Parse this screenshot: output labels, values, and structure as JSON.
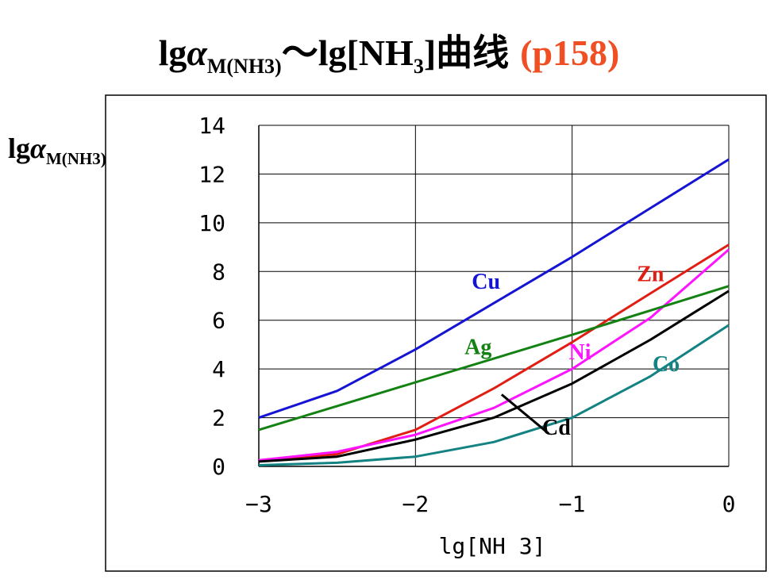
{
  "header": {
    "title_prefix": "lg",
    "title_alpha": "α",
    "title_sub": "M(NH3)",
    "title_tilde": "～",
    "title_main": "lg[NH",
    "title_sub3": "3",
    "title_suffix": "]曲线",
    "title_page": "(p158)",
    "page_color": "#f04e23"
  },
  "chart_data": {
    "type": "line",
    "title": "",
    "ylabel": "lgα M(NH3)",
    "xlabel": "lg[NH 3]",
    "xlim": [
      -3,
      0
    ],
    "ylim": [
      0,
      14
    ],
    "xticks": [
      -3,
      -2,
      -1,
      0
    ],
    "xtick_labels": [
      "−3",
      "−2",
      "−1",
      "0"
    ],
    "yticks": [
      0,
      2,
      4,
      6,
      8,
      10,
      12,
      14
    ],
    "grid": true,
    "series": [
      {
        "name": "Cu",
        "color": "#1414d2",
        "x": [
          -3,
          -2.5,
          -2.0,
          -1.5,
          -1.0,
          -0.5,
          0
        ],
        "y": [
          2.0,
          3.1,
          4.8,
          6.7,
          8.6,
          10.6,
          12.6
        ]
      },
      {
        "name": "Zn",
        "color": "#e01e14",
        "x": [
          -3,
          -2.5,
          -2.0,
          -1.5,
          -1.0,
          -0.5,
          0
        ],
        "y": [
          0.25,
          0.5,
          1.5,
          3.2,
          5.1,
          7.1,
          9.1
        ]
      },
      {
        "name": "Ni",
        "color": "#ff14ff",
        "x": [
          -3,
          -2.5,
          -2.0,
          -1.5,
          -1.0,
          -0.5,
          0
        ],
        "y": [
          0.25,
          0.6,
          1.3,
          2.4,
          4.0,
          6.1,
          8.9
        ]
      },
      {
        "name": "Ag",
        "color": "#138213",
        "x": [
          -3,
          -2.0,
          -1.0,
          0
        ],
        "y": [
          1.5,
          3.45,
          5.4,
          7.4
        ]
      },
      {
        "name": "Cd",
        "color": "#000000",
        "x": [
          -3,
          -2.5,
          -2.0,
          -1.5,
          -1.0,
          -0.5,
          0
        ],
        "y": [
          0.2,
          0.4,
          1.1,
          2.0,
          3.4,
          5.2,
          7.2
        ]
      },
      {
        "name": "Co",
        "color": "#138282",
        "x": [
          -3,
          -2.5,
          -2.0,
          -1.5,
          -1.0,
          -0.5,
          0
        ],
        "y": [
          0.05,
          0.15,
          0.4,
          1.0,
          2.0,
          3.7,
          5.8
        ]
      }
    ],
    "annotations": [
      {
        "text": "Cu",
        "x": -1.55,
        "y": 7.3,
        "color": "#1414d2"
      },
      {
        "text": "Zn",
        "x": -0.5,
        "y": 7.6,
        "color": "#e01e14"
      },
      {
        "text": "Ni",
        "x": -0.95,
        "y": 4.4,
        "color": "#ff14ff"
      },
      {
        "text": "Ag",
        "x": -1.6,
        "y": 4.6,
        "color": "#138213"
      },
      {
        "text": "Co",
        "x": -0.4,
        "y": 3.9,
        "color": "#138282"
      },
      {
        "text": "Cd",
        "x": -1.1,
        "y": 1.3,
        "color": "#000000"
      }
    ],
    "cd_leader": {
      "from": [
        -1.45,
        2.95
      ],
      "to": [
        -1.15,
        1.35
      ]
    }
  }
}
